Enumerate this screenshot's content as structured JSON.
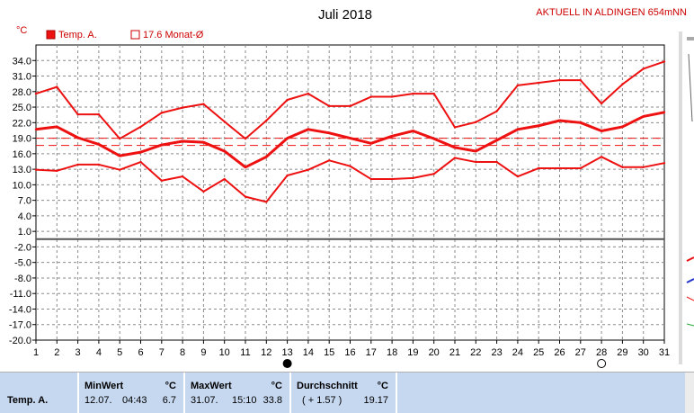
{
  "header": {
    "title": "Juli 2018",
    "station": "AKTUELL IN ALDINGEN 654mNN",
    "unit": "°C"
  },
  "legend": {
    "series_label": "Temp. A.",
    "average_label": "17.6 Monat-Ø"
  },
  "chart_data": {
    "type": "line",
    "title": "Juli 2018",
    "ylabel": "°C",
    "xlabel": "",
    "x": [
      1,
      2,
      3,
      4,
      5,
      6,
      7,
      8,
      9,
      10,
      11,
      12,
      13,
      14,
      15,
      16,
      17,
      18,
      19,
      20,
      21,
      22,
      23,
      24,
      25,
      26,
      27,
      28,
      29,
      30,
      31
    ],
    "ylim": [
      -20,
      37
    ],
    "yticks": [
      34.0,
      31.0,
      28.0,
      25.0,
      22.0,
      19.0,
      16.0,
      13.0,
      10.0,
      7.0,
      4.0,
      1.0,
      -2.0,
      -5.0,
      -8.0,
      -11.0,
      -14.0,
      -17.0,
      -20.0
    ],
    "grid": true,
    "series": [
      {
        "name": "",
        "role": "max",
        "color": "#ee1111",
        "values": [
          27.6,
          28.9,
          23.6,
          23.6,
          18.9,
          21.2,
          23.9,
          24.9,
          25.6,
          22.2,
          18.9,
          22.4,
          26.4,
          27.6,
          25.2,
          25.2,
          27.0,
          27.0,
          27.6,
          27.6,
          21.1,
          22.1,
          24.2,
          29.2,
          29.7,
          30.2,
          30.2,
          25.7,
          29.4,
          32.4,
          33.8
        ]
      },
      {
        "name": "Temp. A.",
        "role": "mean",
        "color": "#ee1111",
        "values": [
          20.7,
          21.2,
          19.1,
          17.8,
          15.6,
          16.3,
          17.7,
          18.4,
          18.2,
          16.5,
          13.4,
          15.4,
          19.0,
          20.7,
          20.0,
          19.0,
          18.0,
          19.4,
          20.4,
          18.9,
          17.2,
          16.5,
          18.6,
          20.7,
          21.4,
          22.4,
          22.0,
          20.4,
          21.2,
          23.2,
          24.0
        ]
      },
      {
        "name": "",
        "role": "min",
        "color": "#ee1111",
        "values": [
          12.9,
          12.7,
          13.9,
          13.9,
          12.9,
          14.4,
          10.8,
          11.6,
          8.7,
          11.1,
          7.7,
          6.7,
          11.8,
          12.9,
          14.7,
          13.6,
          11.1,
          11.1,
          11.3,
          12.1,
          15.2,
          14.4,
          14.4,
          11.6,
          13.2,
          13.2,
          13.2,
          15.4,
          13.4,
          13.4,
          14.2
        ]
      }
    ],
    "reference_lines": [
      {
        "value": 19.0,
        "style": "dashed",
        "color": "#ee1111"
      },
      {
        "value": 17.6,
        "style": "dashed",
        "color": "#ee1111"
      }
    ],
    "markers": [
      {
        "x": 13,
        "icon": "new-moon-icon"
      },
      {
        "x": 28,
        "icon": "full-moon-icon"
      }
    ]
  },
  "stats": {
    "row_label": "Temp. A.",
    "min": {
      "header": "MinWert",
      "unit": "°C",
      "date": "12.07.",
      "time": "04:43",
      "value": "6.7"
    },
    "max": {
      "header": "MaxWert",
      "unit": "°C",
      "date": "31.07.",
      "time": "15:10",
      "value": "33.8"
    },
    "avg": {
      "header": "Durchschnitt",
      "unit": "°C",
      "delta": "( + 1.57 )",
      "value": "19.17"
    }
  }
}
